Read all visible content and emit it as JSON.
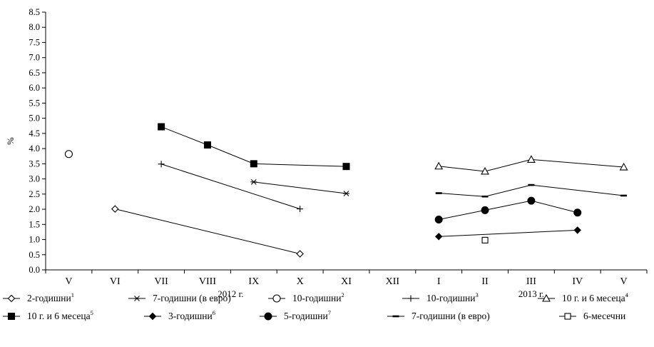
{
  "chart_data": {
    "type": "line",
    "ylabel": "%",
    "ylim": [
      0,
      8.5
    ],
    "ytick_step": 0.5,
    "categories": [
      "V",
      "VI",
      "VII",
      "VIII",
      "IX",
      "X",
      "XI",
      "XII",
      "I",
      "II",
      "III",
      "IV",
      "V"
    ],
    "year_groups": [
      {
        "label": "2012 г.",
        "from": 0,
        "to": 7
      },
      {
        "label": "2013 г.",
        "from": 8,
        "to": 12
      }
    ],
    "grid": false,
    "legend_position": "bottom",
    "series": [
      {
        "name": "2-годишни",
        "sup": "1",
        "marker": "diamond-open",
        "points": [
          [
            1,
            2.01
          ],
          [
            5,
            0.53
          ]
        ]
      },
      {
        "name": "7-годишни (в евро)",
        "sup": "",
        "marker": "star",
        "points": [
          [
            4,
            2.9
          ],
          [
            6,
            2.52
          ]
        ]
      },
      {
        "name": "10-годишни",
        "sup": "2",
        "marker": "circle-open",
        "points": [
          [
            0,
            3.82
          ]
        ]
      },
      {
        "name": "10-годишни",
        "sup": "3",
        "marker": "plus",
        "points": [
          [
            2,
            3.49
          ],
          [
            5,
            2.01
          ]
        ]
      },
      {
        "name": "10  г. и 6 месеца",
        "sup": "4",
        "marker": "triangle-open",
        "points": [
          [
            8,
            3.42
          ],
          [
            9,
            3.25
          ],
          [
            10,
            3.64
          ],
          [
            12,
            3.39
          ]
        ]
      },
      {
        "name": "10  г. и 6 месеца",
        "sup": "5",
        "marker": "square-filled",
        "points": [
          [
            2,
            4.72
          ],
          [
            3,
            4.12
          ],
          [
            4,
            3.5
          ],
          [
            6,
            3.41
          ]
        ]
      },
      {
        "name": "3-годишни",
        "sup": "6",
        "marker": "diamond-filled",
        "points": [
          [
            8,
            1.1
          ],
          [
            11,
            1.31
          ]
        ]
      },
      {
        "name": "5-годишни",
        "sup": "7",
        "marker": "circle-filled",
        "points": [
          [
            8,
            1.66
          ],
          [
            9,
            1.97
          ],
          [
            10,
            2.28
          ],
          [
            11,
            1.89
          ]
        ]
      },
      {
        "name": "7-годишни (в евро)",
        "sup": "",
        "marker": "dash",
        "points": [
          [
            8,
            2.53
          ],
          [
            9,
            2.42
          ],
          [
            10,
            2.8
          ],
          [
            12,
            2.45
          ]
        ]
      },
      {
        "name": "6-месечни",
        "sup": "",
        "marker": "square-open",
        "points": [
          [
            9,
            0.98
          ]
        ]
      }
    ]
  }
}
